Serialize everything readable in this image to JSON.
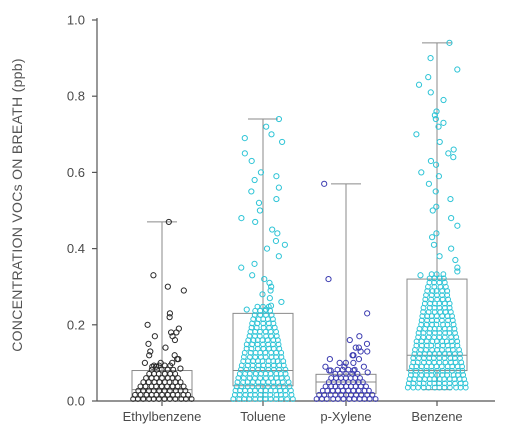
{
  "chart_data": {
    "type": "box",
    "ylabel": "CONCENTRATION VOCs ON BREATH (ppb)",
    "xlabel": "",
    "ylim": [
      0,
      1.0
    ],
    "yticks": [
      "0.0",
      "0.2",
      "0.4",
      "0.6",
      "0.8",
      "1.0"
    ],
    "categories": [
      "Ethylbenzene",
      "Toluene",
      "p-Xylene",
      "Benzene"
    ],
    "series": [
      {
        "category": "Ethylbenzene",
        "color": "#2a2a2a",
        "box": {
          "min": 0.0,
          "q1": 0.01,
          "median": 0.03,
          "q3": 0.08,
          "max": 0.47
        },
        "outer_points": [
          0.47,
          0.33,
          0.3,
          0.29,
          0.23,
          0.22,
          0.2,
          0.19,
          0.18,
          0.18,
          0.17,
          0.17,
          0.16,
          0.15,
          0.14,
          0.13,
          0.12,
          0.12,
          0.11,
          0.11,
          0.1,
          0.1,
          0.1,
          0.09,
          0.09,
          0.09,
          0.085
        ]
      },
      {
        "category": "Toluene",
        "color": "#2ec4d6",
        "box": {
          "min": 0.0,
          "q1": 0.04,
          "median": 0.08,
          "q3": 0.23,
          "max": 0.74
        },
        "outer_points": [
          0.74,
          0.72,
          0.7,
          0.69,
          0.68,
          0.65,
          0.63,
          0.6,
          0.59,
          0.58,
          0.56,
          0.55,
          0.53,
          0.52,
          0.5,
          0.48,
          0.47,
          0.45,
          0.44,
          0.42,
          0.41,
          0.4,
          0.38,
          0.36,
          0.35,
          0.33,
          0.32,
          0.31,
          0.3,
          0.29,
          0.28,
          0.27,
          0.26,
          0.25,
          0.24,
          0.24
        ]
      },
      {
        "category": "p-Xylene",
        "color": "#3b3bb0",
        "box": {
          "min": 0.0,
          "q1": 0.02,
          "median": 0.05,
          "q3": 0.07,
          "max": 0.57
        },
        "outer_points": [
          0.57,
          0.32,
          0.23,
          0.17,
          0.16,
          0.15,
          0.14,
          0.14,
          0.13,
          0.13,
          0.12,
          0.12,
          0.11,
          0.11,
          0.1,
          0.1,
          0.1,
          0.09,
          0.09,
          0.09,
          0.08,
          0.08,
          0.08,
          0.075
        ]
      },
      {
        "category": "Benzene",
        "color": "#2ec4d6",
        "box": {
          "min": 0.03,
          "q1": 0.08,
          "median": 0.12,
          "q3": 0.32,
          "max": 0.94
        },
        "outer_points": [
          0.94,
          0.9,
          0.87,
          0.85,
          0.83,
          0.81,
          0.79,
          0.76,
          0.75,
          0.74,
          0.73,
          0.72,
          0.7,
          0.68,
          0.66,
          0.65,
          0.64,
          0.63,
          0.62,
          0.6,
          0.59,
          0.57,
          0.55,
          0.53,
          0.51,
          0.5,
          0.48,
          0.46,
          0.44,
          0.43,
          0.41,
          0.4,
          0.38,
          0.37,
          0.35,
          0.34,
          0.33
        ]
      }
    ]
  }
}
